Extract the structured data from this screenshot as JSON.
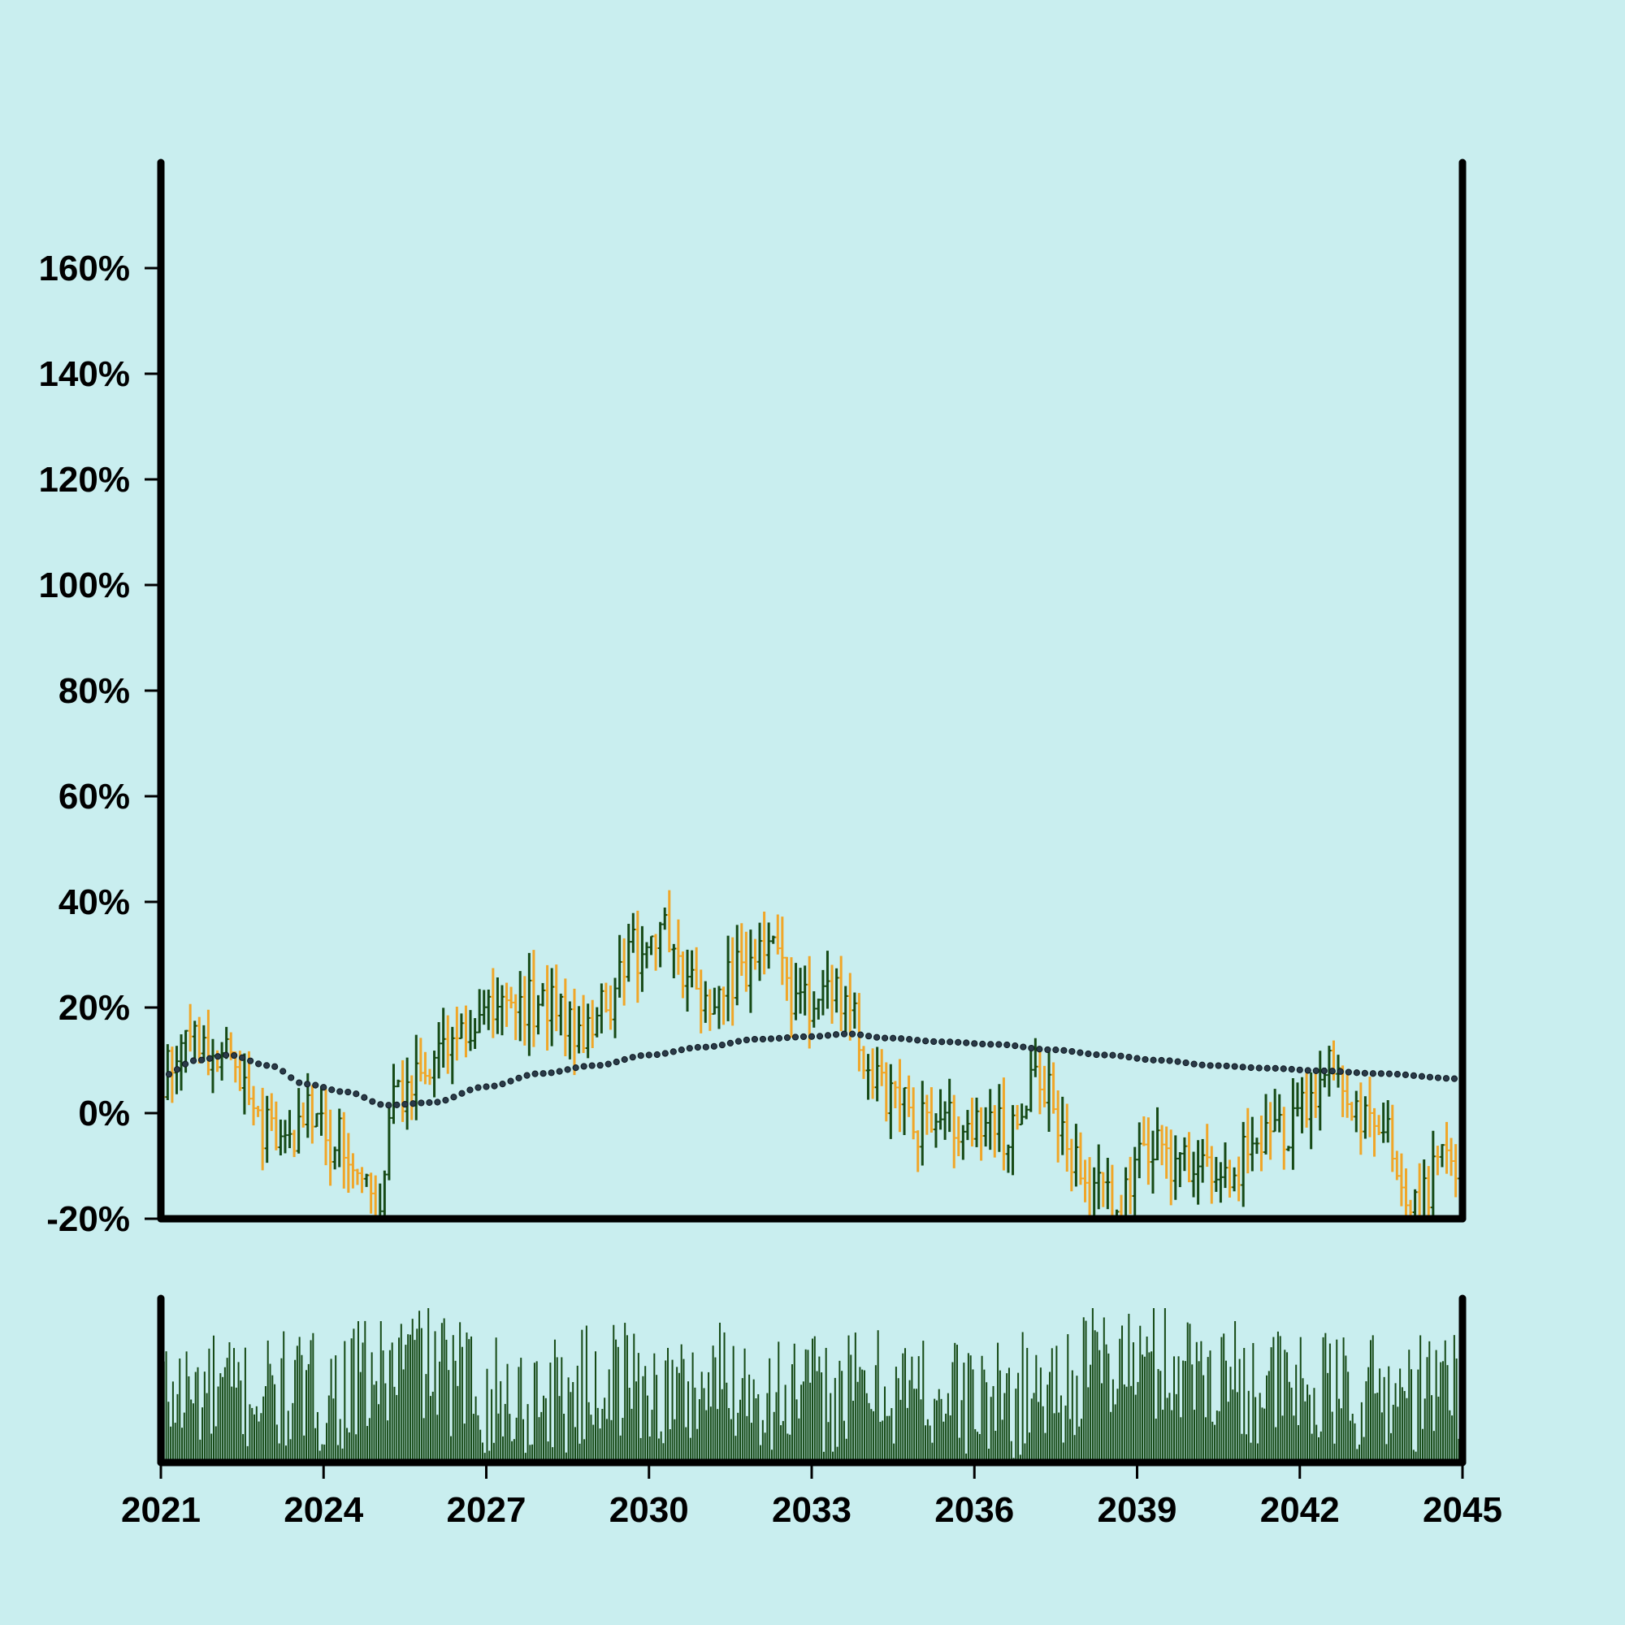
{
  "colors": {
    "background": "#c9eeef",
    "up": "#164a16",
    "down": "#f0a628",
    "moving_average": "#2a3a48",
    "volume": "#164a16",
    "axis": "#000000"
  },
  "chart_data": [
    {
      "type": "ohlc",
      "panel": "price",
      "x_range": [
        "2021-01",
        "2045-01"
      ],
      "ylim": [
        -20,
        180
      ],
      "y_ticks": [
        -20,
        0,
        20,
        40,
        60,
        80,
        100,
        120,
        140,
        160
      ],
      "y_tick_labels": [
        "-20%",
        "0%",
        "20%",
        "40%",
        "60%",
        "80%",
        "100%",
        "120%",
        "140%",
        "160%"
      ],
      "y_unit": "%",
      "interval": "monthly",
      "series": [
        {
          "kind": "ohlc",
          "note": "monthly OHLC bars, values in %",
          "anchors": [
            [
              "2021-01",
              8
            ],
            [
              "2021-10",
              13
            ],
            [
              "2022-03",
              12
            ],
            [
              "2022-07",
              2
            ],
            [
              "2023-03",
              -6
            ],
            [
              "2023-09",
              -1
            ],
            [
              "2024-05",
              -6
            ],
            [
              "2025-01",
              -18
            ],
            [
              "2025-05",
              4
            ],
            [
              "2026-01",
              8
            ],
            [
              "2026-09",
              18
            ],
            [
              "2027-03",
              20
            ],
            [
              "2027-09",
              21
            ],
            [
              "2028-03",
              22
            ],
            [
              "2028-09",
              14
            ],
            [
              "2029-03",
              20
            ],
            [
              "2029-09",
              30
            ],
            [
              "2030-03",
              35
            ],
            [
              "2030-09",
              25
            ],
            [
              "2031-03",
              19
            ],
            [
              "2031-09",
              28
            ],
            [
              "2032-03",
              31
            ],
            [
              "2032-09",
              22
            ],
            [
              "2033-03",
              22
            ],
            [
              "2033-09",
              20
            ],
            [
              "2034-03",
              5
            ],
            [
              "2034-09",
              0
            ],
            [
              "2035-03",
              -3
            ],
            [
              "2035-09",
              -2
            ],
            [
              "2036-03",
              0
            ],
            [
              "2036-09",
              -5
            ],
            [
              "2037-03",
              8
            ],
            [
              "2037-09",
              -5
            ],
            [
              "2038-03",
              -15
            ],
            [
              "2038-09",
              -18
            ],
            [
              "2039-03",
              -5
            ],
            [
              "2039-09",
              -10
            ],
            [
              "2040-03",
              -10
            ],
            [
              "2040-09",
              -15
            ],
            [
              "2041-03",
              -5
            ],
            [
              "2041-09",
              -5
            ],
            [
              "2042-03",
              3
            ],
            [
              "2042-09",
              8
            ],
            [
              "2043-03",
              -2
            ],
            [
              "2043-09",
              -5
            ],
            [
              "2044-03",
              -18
            ],
            [
              "2044-09",
              -8
            ],
            [
              "2045-01",
              -10
            ]
          ]
        },
        {
          "kind": "moving_average",
          "style": "dotted",
          "values": [
            [
              "2021-01",
              7
            ],
            [
              "2021-09",
              10
            ],
            [
              "2022-04",
              11
            ],
            [
              "2023-01",
              9
            ],
            [
              "2023-09",
              5.5
            ],
            [
              "2024-06",
              4
            ],
            [
              "2025-03",
              1.5
            ],
            [
              "2026-01",
              2
            ],
            [
              "2027-01",
              5
            ],
            [
              "2028-01",
              7.5
            ],
            [
              "2029-01",
              9
            ],
            [
              "2030-01",
              11
            ],
            [
              "2031-01",
              12.5
            ],
            [
              "2032-01",
              14
            ],
            [
              "2033-01",
              14.5
            ],
            [
              "2033-09",
              15
            ],
            [
              "2034-06",
              14.2
            ],
            [
              "2035-06",
              13.5
            ],
            [
              "2036-06",
              13
            ],
            [
              "2037-06",
              12
            ],
            [
              "2038-06",
              11
            ],
            [
              "2039-06",
              10
            ],
            [
              "2040-06",
              9
            ],
            [
              "2041-06",
              8.5
            ],
            [
              "2042-06",
              8
            ],
            [
              "2043-06",
              7.5
            ],
            [
              "2045-01",
              6.5
            ]
          ]
        }
      ]
    },
    {
      "type": "bar",
      "panel": "volume",
      "x_range": [
        "2021-01",
        "2045-01"
      ],
      "x_ticks": [
        "2021",
        "2024",
        "2027",
        "2030",
        "2033",
        "2036",
        "2039",
        "2042",
        "2045"
      ],
      "y_ticks": [],
      "series": [
        {
          "kind": "volume",
          "note": "monthly volume bars, values relative 0-1",
          "level_anchors": [
            [
              "2021-01",
              0.45
            ],
            [
              "2022-01",
              0.45
            ],
            [
              "2023-01",
              0.45
            ],
            [
              "2024-01",
              0.45
            ],
            [
              "2025-01",
              0.55
            ],
            [
              "2025-09",
              0.7
            ],
            [
              "2026-06",
              0.55
            ],
            [
              "2027-06",
              0.4
            ],
            [
              "2028-06",
              0.45
            ],
            [
              "2029-06",
              0.55
            ],
            [
              "2030-06",
              0.45
            ],
            [
              "2031-06",
              0.55
            ],
            [
              "2032-06",
              0.45
            ],
            [
              "2033-06",
              0.45
            ],
            [
              "2034-06",
              0.5
            ],
            [
              "2035-06",
              0.45
            ],
            [
              "2036-06",
              0.4
            ],
            [
              "2037-06",
              0.5
            ],
            [
              "2038-06",
              0.65
            ],
            [
              "2039-06",
              0.65
            ],
            [
              "2040-06",
              0.6
            ],
            [
              "2041-06",
              0.5
            ],
            [
              "2042-06",
              0.45
            ],
            [
              "2043-06",
              0.45
            ],
            [
              "2044-06",
              0.45
            ],
            [
              "2045-01",
              0.55
            ]
          ]
        }
      ]
    }
  ]
}
